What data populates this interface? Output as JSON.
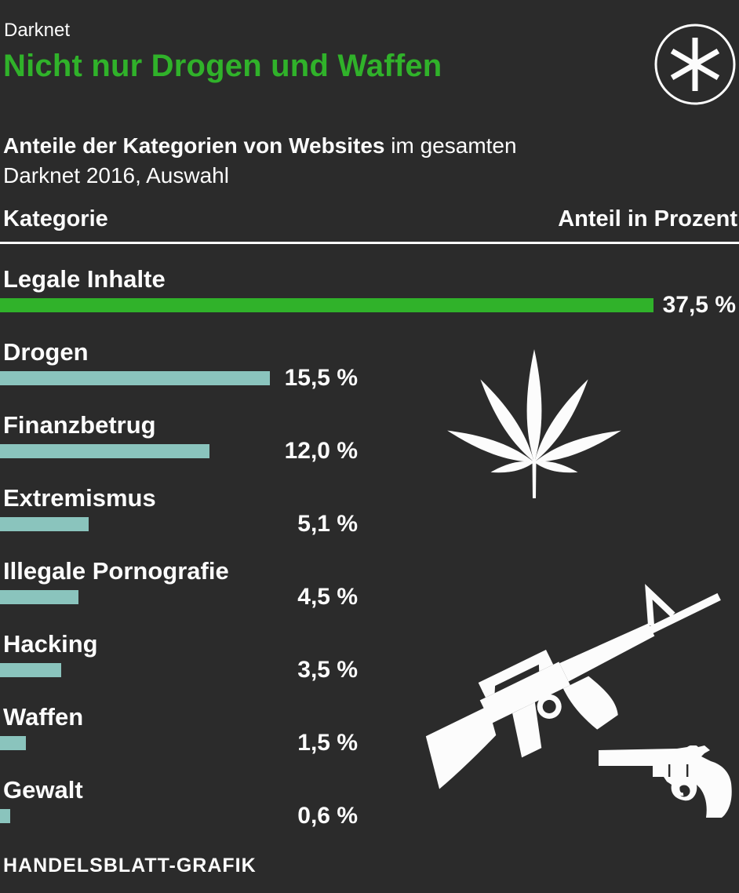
{
  "header": {
    "kicker": "Darknet",
    "title": "Nicht nur Drogen und Waffen",
    "subtitle_bold": "Anteile der Kategorien von Websites",
    "subtitle_rest": " im gesamten",
    "subtitle_line2": "Darknet 2016, Auswahl"
  },
  "logo": {
    "icon": "asterisk-in-circle"
  },
  "table": {
    "col_left": "Kategorie",
    "col_right": "Anteil in Prozent"
  },
  "footer": {
    "credit": "HANDELSBLATT-GRAFIK"
  },
  "colors": {
    "background": "#2b2b2b",
    "headline_green": "#30b22a",
    "bar_highlight_green": "#30b22a",
    "bar_teal": "#8ac4bd",
    "text_white": "#fcfcfc"
  },
  "icons": [
    "asterisk-logo-icon",
    "cannabis-leaf-icon",
    "rifle-icon",
    "revolver-icon"
  ],
  "chart_data": {
    "type": "bar",
    "orientation": "horizontal",
    "kicker": "Darknet",
    "title": "Nicht nur Drogen und Waffen",
    "subtitle": "Anteile der Kategorien von Websites im gesamten Darknet 2016, Auswahl",
    "categories": [
      "Legale Inhalte",
      "Drogen",
      "Finanzbetrug",
      "Extremismus",
      "Illegale Pornografie",
      "Hacking",
      "Waffen",
      "Gewalt"
    ],
    "values": [
      37.5,
      15.5,
      12.0,
      5.1,
      4.5,
      3.5,
      1.5,
      0.6
    ],
    "value_labels": [
      "37,5 %",
      "15,5 %",
      "12,0 %",
      "5,1 %",
      "4,5 %",
      "3,5 %",
      "1,5 %",
      "0,6 %"
    ],
    "unit": "Prozent",
    "xlim": [
      0,
      37.5
    ],
    "highlight_index": 0,
    "bar_colors": {
      "highlight": "#30b22a",
      "default": "#8ac4bd"
    },
    "grid": false,
    "legend": false,
    "source": "HANDELSBLATT-GRAFIK"
  }
}
